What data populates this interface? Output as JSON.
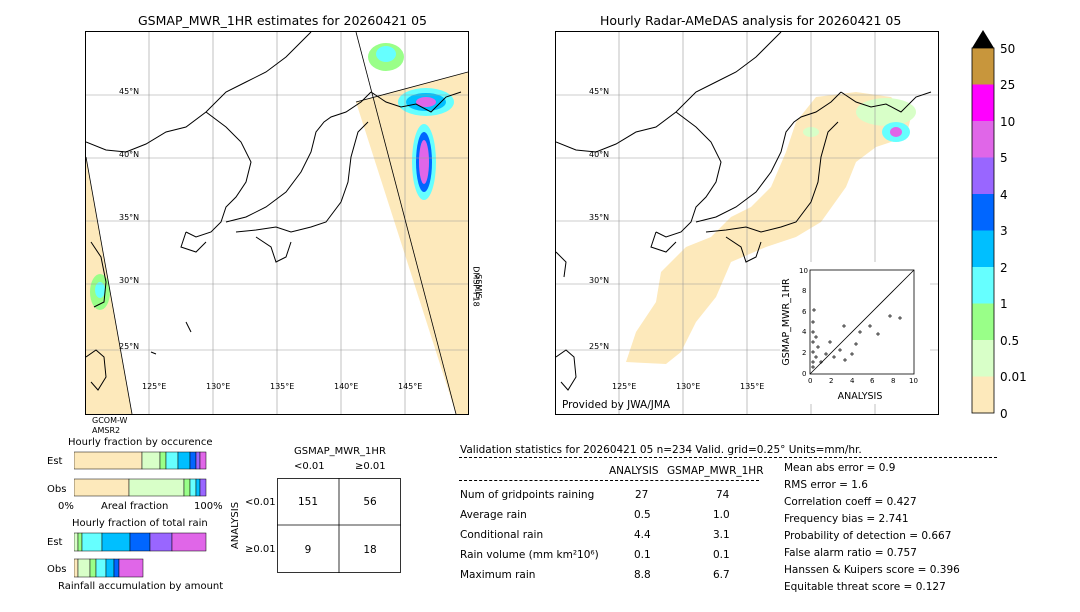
{
  "left_map": {
    "title": "GSMAP_MWR_1HR estimates for 20260421 05",
    "lat_labels": [
      "45°N",
      "40°N",
      "35°N",
      "30°N",
      "25°N"
    ],
    "lon_labels": [
      "125°E",
      "130°E",
      "135°E",
      "140°E",
      "145°E"
    ],
    "sat_right": [
      "DMSP-F18",
      "SSMIS"
    ],
    "sat_left": [
      "GCOM-W",
      "AMSR2"
    ]
  },
  "right_map": {
    "title": "Hourly Radar-AMeDAS analysis for 20260421 05",
    "lat_labels": [
      "45°N",
      "40°N",
      "35°N",
      "30°N",
      "25°N"
    ],
    "lon_labels": [
      "125°E",
      "130°E",
      "135°E"
    ],
    "provider": "Provided by JWA/JMA"
  },
  "scatter": {
    "ylabel": "GSMAP_MWR_1HR",
    "xlabel": "ANALYSIS",
    "ticks": [
      "0",
      "2",
      "4",
      "6",
      "8",
      "10"
    ]
  },
  "colorbar": {
    "labels": [
      "50",
      "25",
      "10",
      "5",
      "4",
      "3",
      "2",
      "1",
      "0.5",
      "0.01",
      "0"
    ],
    "colors": [
      "#c8963c",
      "#ff00ff",
      "#e066e8",
      "#9966ff",
      "#0066ff",
      "#00bfff",
      "#66ffff",
      "#99ff88",
      "#d8ffc8",
      "#fde9bb"
    ]
  },
  "fraction_occurrence": {
    "title": "Hourly fraction by occurence",
    "rows": [
      "Est",
      "Obs"
    ],
    "axis": [
      "0%",
      "Areal fraction",
      "100%"
    ]
  },
  "fraction_total": {
    "title": "Hourly fraction of total rain",
    "rows": [
      "Est",
      "Obs"
    ],
    "footer": "Rainfall accumulation by amount"
  },
  "contingency": {
    "title": "GSMAP_MWR_1HR",
    "col_labels": [
      "<0.01",
      "≥0.01"
    ],
    "row_axis": "ANALYSIS",
    "row_labels": [
      "<0.01",
      "≥0.01"
    ],
    "cells": [
      "151",
      "56",
      "9",
      "18"
    ]
  },
  "validation": {
    "header": "Validation statistics for 20260421 05  n=234 Valid. grid=0.25° Units=mm/hr.",
    "col_analysis": "ANALYSIS",
    "col_gsmap": "GSMAP_MWR_1HR",
    "rows": [
      {
        "label": "Num of gridpoints raining",
        "a": "27",
        "g": "74"
      },
      {
        "label": "Average rain",
        "a": "0.5",
        "g": "1.0"
      },
      {
        "label": "Conditional rain",
        "a": "4.4",
        "g": "3.1"
      },
      {
        "label": "Rain volume (mm km²10⁶)",
        "a": "0.1",
        "g": "0.1"
      },
      {
        "label": "Maximum rain",
        "a": "8.8",
        "g": "6.7"
      }
    ],
    "scores": [
      "Mean abs error =    0.9",
      "RMS error =    1.6",
      "Correlation coeff =  0.427",
      "Frequency bias =  2.741",
      "Probability of detection =  0.667",
      "False alarm ratio =  0.757",
      "Hanssen & Kuipers score =  0.396",
      "Equitable threat score =  0.127"
    ]
  }
}
